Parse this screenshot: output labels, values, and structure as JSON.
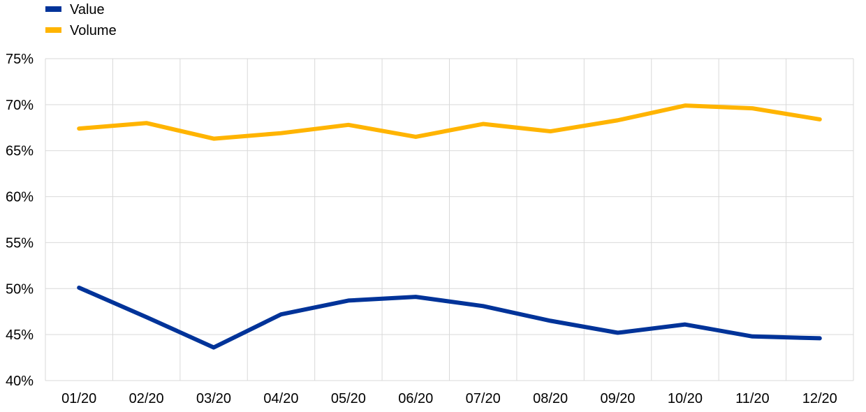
{
  "chart_data": {
    "type": "line",
    "title": "",
    "xlabel": "",
    "ylabel": "",
    "categories": [
      "01/20",
      "02/20",
      "03/20",
      "04/20",
      "05/20",
      "06/20",
      "07/20",
      "08/20",
      "09/20",
      "10/20",
      "11/20",
      "12/20"
    ],
    "ylim": [
      40,
      75
    ],
    "yticks": [
      40,
      45,
      50,
      55,
      60,
      65,
      70,
      75
    ],
    "ytick_labels": [
      "40%",
      "45%",
      "50%",
      "55%",
      "60%",
      "65%",
      "70%",
      "75%"
    ],
    "grid": true,
    "legend_position": "top-left",
    "series": [
      {
        "name": "Value",
        "color": "#003399",
        "values": [
          50.1,
          46.9,
          43.6,
          47.2,
          48.7,
          49.1,
          48.1,
          46.5,
          45.2,
          46.1,
          44.8,
          44.6
        ]
      },
      {
        "name": "Volume",
        "color": "#ffb400",
        "values": [
          67.4,
          68.0,
          66.3,
          66.9,
          67.8,
          66.5,
          67.9,
          67.1,
          68.3,
          69.9,
          69.6,
          68.4
        ]
      }
    ]
  }
}
